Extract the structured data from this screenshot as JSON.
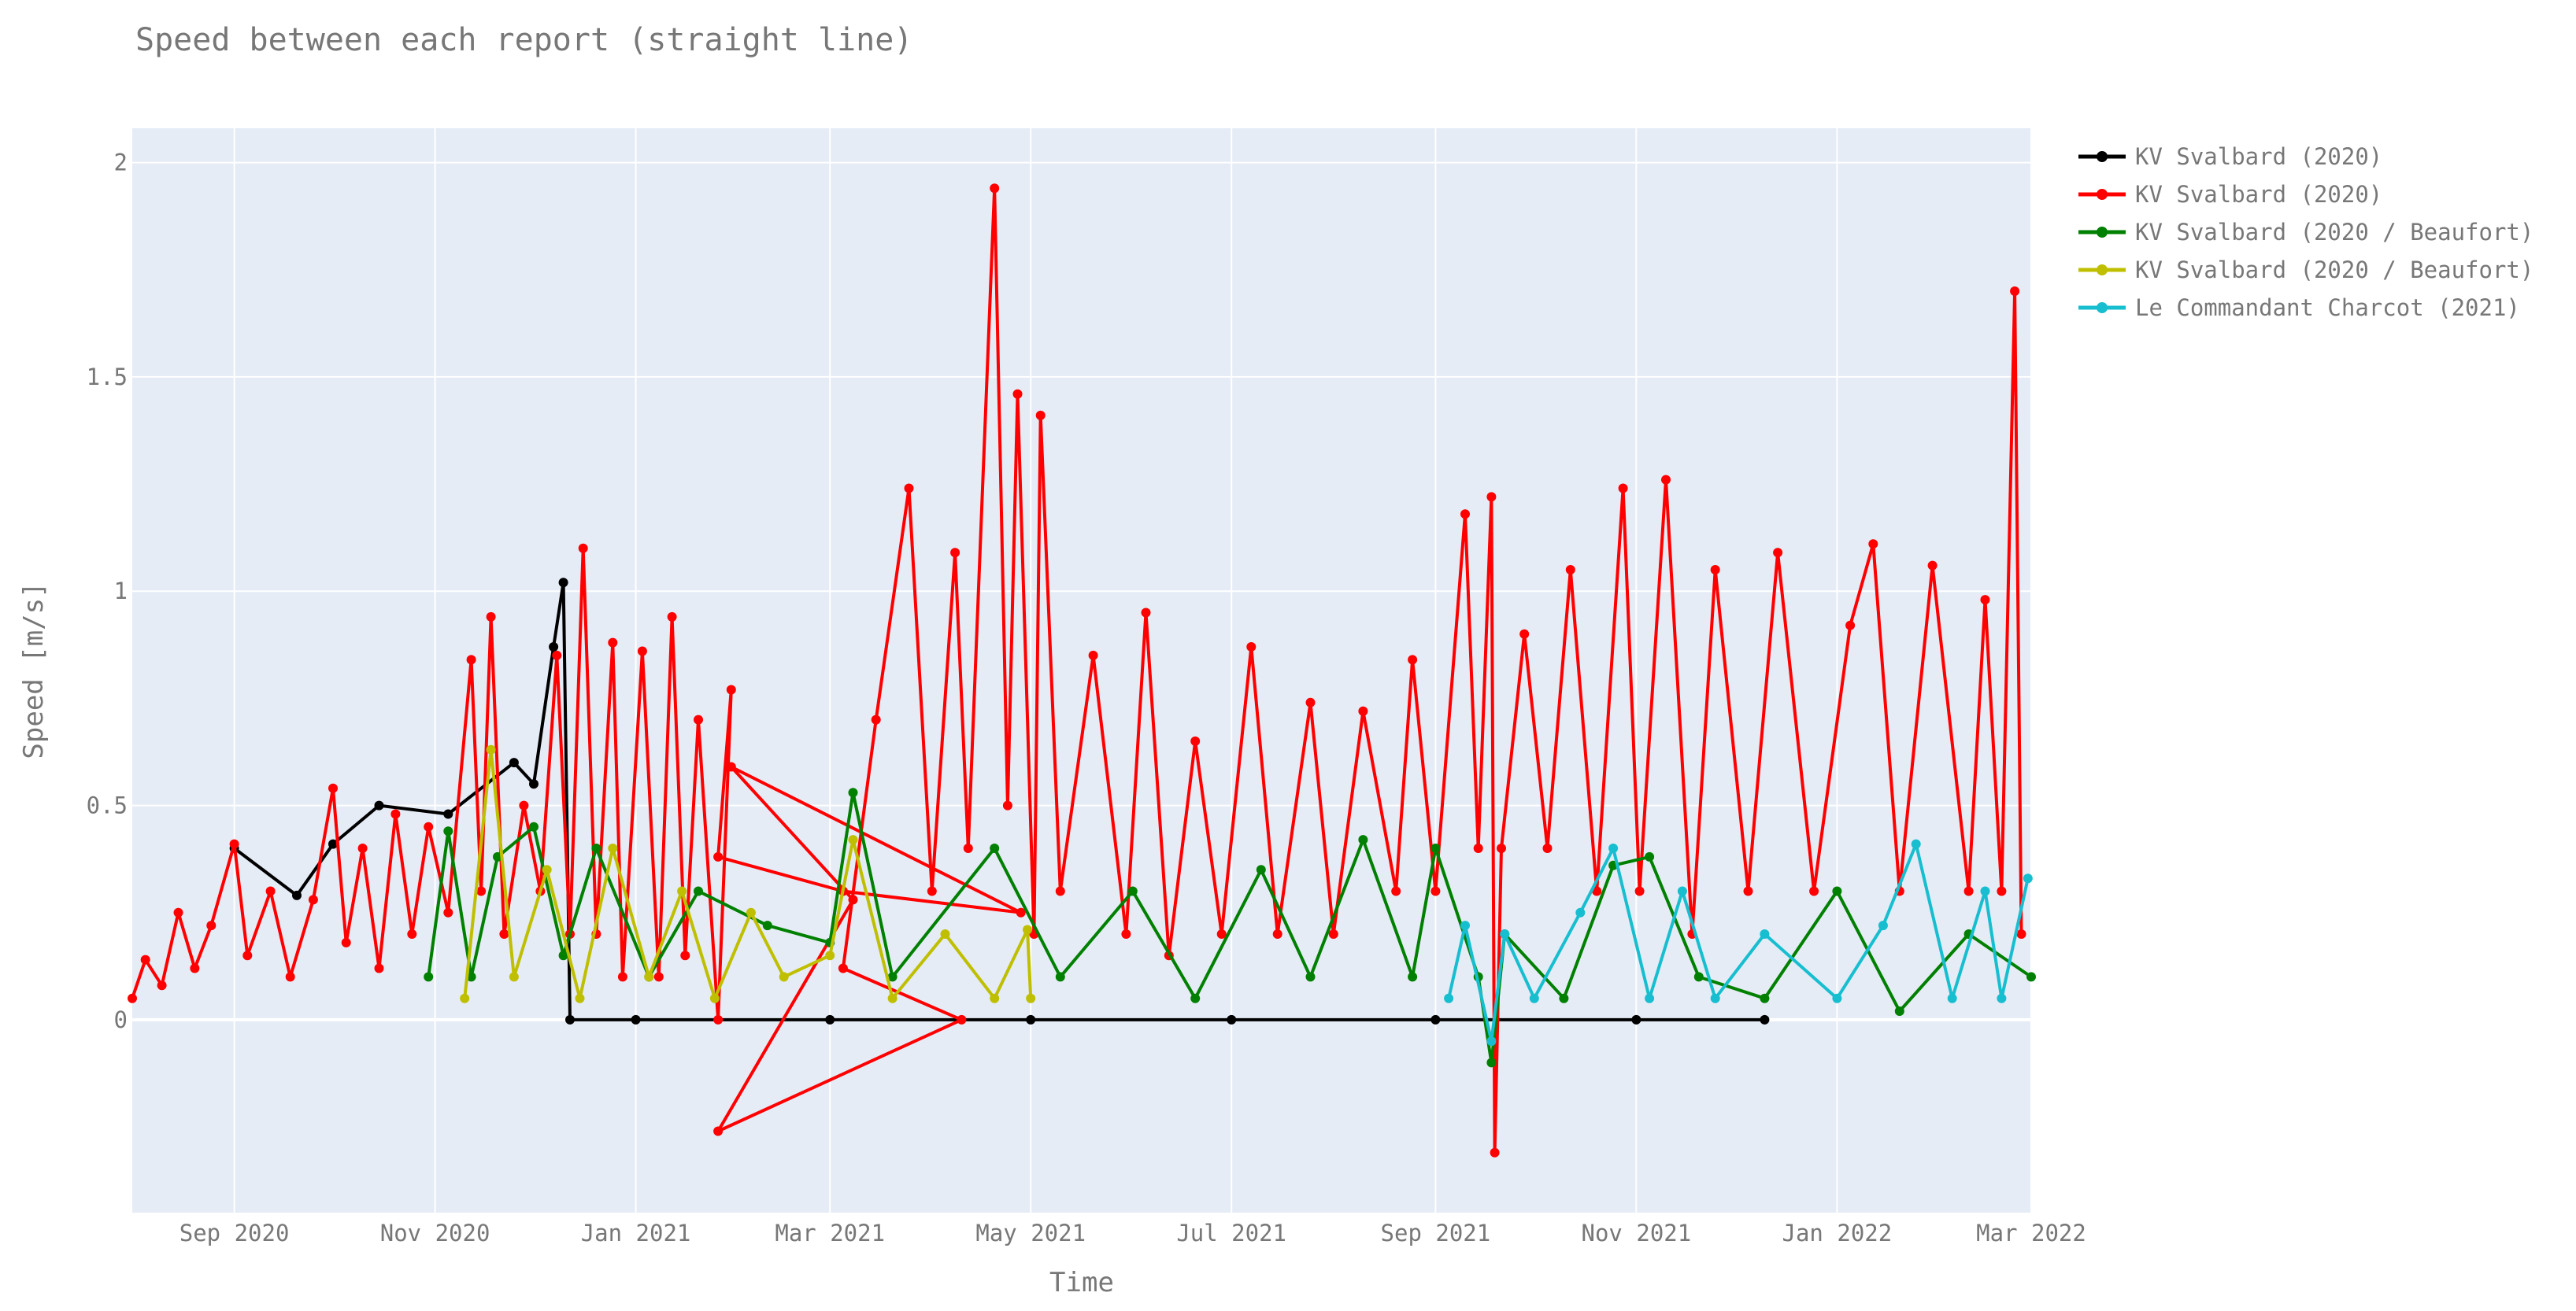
{
  "chart_data": {
    "type": "line",
    "title": "Speed between each report (straight line)",
    "xlabel": "Time",
    "ylabel": "Speed [m/s]",
    "x_range": [
      "2020-08-01",
      "2022-03-01"
    ],
    "ylim": [
      -0.45,
      2.08
    ],
    "grid": true,
    "legend_placement": "top-right outside",
    "plot_background": "#E5ECF6",
    "x_ticks": [
      {
        "date": "2020-09-01",
        "label": "Sep 2020"
      },
      {
        "date": "2020-11-01",
        "label": "Nov 2020"
      },
      {
        "date": "2021-01-01",
        "label": "Jan 2021"
      },
      {
        "date": "2021-03-01",
        "label": "Mar 2021"
      },
      {
        "date": "2021-05-01",
        "label": "May 2021"
      },
      {
        "date": "2021-07-01",
        "label": "Jul 2021"
      },
      {
        "date": "2021-09-01",
        "label": "Sep 2021"
      },
      {
        "date": "2021-11-01",
        "label": "Nov 2021"
      },
      {
        "date": "2022-01-01",
        "label": "Jan 2022"
      },
      {
        "date": "2022-03-01",
        "label": "Mar 2022"
      }
    ],
    "y_ticks": [
      {
        "value": 0,
        "label": "0"
      },
      {
        "value": 0.5,
        "label": "0.5"
      },
      {
        "value": 1,
        "label": "1"
      },
      {
        "value": 1.5,
        "label": "1.5"
      },
      {
        "value": 2,
        "label": "2"
      }
    ],
    "series": [
      {
        "name": "KV Svalbard (2020)",
        "color": "#000000",
        "points": [
          [
            "2020-09-01",
            0.4
          ],
          [
            "2020-09-20",
            0.29
          ],
          [
            "2020-10-01",
            0.41
          ],
          [
            "2020-10-15",
            0.5
          ],
          [
            "2020-11-05",
            0.48
          ],
          [
            "2020-11-25",
            0.6
          ],
          [
            "2020-12-01",
            0.55
          ],
          [
            "2020-12-07",
            0.87
          ],
          [
            "2020-12-10",
            1.02
          ],
          [
            "2020-12-12",
            0.0
          ],
          [
            "2021-01-01",
            0.0
          ],
          [
            "2021-03-01",
            0.0
          ],
          [
            "2021-05-01",
            0.0
          ],
          [
            "2021-07-01",
            0.0
          ],
          [
            "2021-09-01",
            0.0
          ],
          [
            "2021-11-01",
            0.0
          ],
          [
            "2021-12-10",
            0.0
          ]
        ]
      },
      {
        "name": "KV Svalbard (2020)",
        "color": "#FF0000",
        "points": [
          [
            "2020-08-01",
            0.05
          ],
          [
            "2020-08-05",
            0.14
          ],
          [
            "2020-08-10",
            0.08
          ],
          [
            "2020-08-15",
            0.25
          ],
          [
            "2020-08-20",
            0.12
          ],
          [
            "2020-08-25",
            0.22
          ],
          [
            "2020-09-01",
            0.41
          ],
          [
            "2020-09-05",
            0.15
          ],
          [
            "2020-09-12",
            0.3
          ],
          [
            "2020-09-18",
            0.1
          ],
          [
            "2020-09-25",
            0.28
          ],
          [
            "2020-10-01",
            0.54
          ],
          [
            "2020-10-05",
            0.18
          ],
          [
            "2020-10-10",
            0.4
          ],
          [
            "2020-10-15",
            0.12
          ],
          [
            "2020-10-20",
            0.48
          ],
          [
            "2020-10-25",
            0.2
          ],
          [
            "2020-10-30",
            0.45
          ],
          [
            "2020-11-05",
            0.25
          ],
          [
            "2020-11-12",
            0.84
          ],
          [
            "2020-11-15",
            0.3
          ],
          [
            "2020-11-18",
            0.94
          ],
          [
            "2020-11-22",
            0.2
          ],
          [
            "2020-11-28",
            0.5
          ],
          [
            "2020-12-03",
            0.3
          ],
          [
            "2020-12-08",
            0.85
          ],
          [
            "2020-12-12",
            0.2
          ],
          [
            "2020-12-16",
            1.1
          ],
          [
            "2020-12-20",
            0.2
          ],
          [
            "2020-12-25",
            0.88
          ],
          [
            "2020-12-28",
            0.1
          ],
          [
            "2021-01-03",
            0.86
          ],
          [
            "2021-01-08",
            0.1
          ],
          [
            "2021-01-12",
            0.94
          ],
          [
            "2021-01-16",
            0.15
          ],
          [
            "2021-01-20",
            0.7
          ],
          [
            "2021-01-26",
            0.0
          ],
          [
            "2021-01-30",
            0.77
          ],
          [
            "2021-01-26",
            0.38
          ],
          [
            "2021-03-05",
            0.3
          ],
          [
            "2021-04-28",
            0.25
          ],
          [
            "2021-01-30",
            0.59
          ],
          [
            "2021-03-08",
            0.28
          ],
          [
            "2021-01-26",
            -0.26
          ],
          [
            "2021-04-10",
            0.0
          ],
          [
            "2021-03-05",
            0.12
          ],
          [
            "2021-03-15",
            0.7
          ],
          [
            "2021-03-25",
            1.24
          ],
          [
            "2021-04-01",
            0.3
          ],
          [
            "2021-04-08",
            1.09
          ],
          [
            "2021-04-12",
            0.4
          ],
          [
            "2021-04-20",
            1.94
          ],
          [
            "2021-04-24",
            0.5
          ],
          [
            "2021-04-27",
            1.46
          ],
          [
            "2021-05-02",
            0.2
          ],
          [
            "2021-05-04",
            1.41
          ],
          [
            "2021-05-10",
            0.3
          ],
          [
            "2021-05-20",
            0.85
          ],
          [
            "2021-05-30",
            0.2
          ],
          [
            "2021-06-05",
            0.95
          ],
          [
            "2021-06-12",
            0.15
          ],
          [
            "2021-06-20",
            0.65
          ],
          [
            "2021-06-28",
            0.2
          ],
          [
            "2021-07-07",
            0.87
          ],
          [
            "2021-07-15",
            0.2
          ],
          [
            "2021-07-25",
            0.74
          ],
          [
            "2021-08-01",
            0.2
          ],
          [
            "2021-08-10",
            0.72
          ],
          [
            "2021-08-20",
            0.3
          ],
          [
            "2021-08-25",
            0.84
          ],
          [
            "2021-09-01",
            0.3
          ],
          [
            "2021-09-10",
            1.18
          ],
          [
            "2021-09-14",
            0.4
          ],
          [
            "2021-09-18",
            1.22
          ],
          [
            "2021-09-19",
            -0.31
          ],
          [
            "2021-09-21",
            0.4
          ],
          [
            "2021-09-28",
            0.9
          ],
          [
            "2021-10-05",
            0.4
          ],
          [
            "2021-10-12",
            1.05
          ],
          [
            "2021-10-20",
            0.3
          ],
          [
            "2021-10-28",
            1.24
          ],
          [
            "2021-11-02",
            0.3
          ],
          [
            "2021-11-10",
            1.26
          ],
          [
            "2021-11-18",
            0.2
          ],
          [
            "2021-11-25",
            1.05
          ],
          [
            "2021-12-05",
            0.3
          ],
          [
            "2021-12-14",
            1.09
          ],
          [
            "2021-12-25",
            0.3
          ],
          [
            "2022-01-05",
            0.92
          ],
          [
            "2022-01-12",
            1.11
          ],
          [
            "2022-01-20",
            0.3
          ],
          [
            "2022-01-30",
            1.06
          ],
          [
            "2022-02-10",
            0.3
          ],
          [
            "2022-02-15",
            0.98
          ],
          [
            "2022-02-20",
            0.3
          ],
          [
            "2022-02-24",
            1.7
          ],
          [
            "2022-02-26",
            0.2
          ]
        ]
      },
      {
        "name": "KV Svalbard (2020 / Beaufort)",
        "color": "#008000",
        "points": [
          [
            "2020-10-30",
            0.1
          ],
          [
            "2020-11-05",
            0.44
          ],
          [
            "2020-11-12",
            0.1
          ],
          [
            "2020-11-20",
            0.38
          ],
          [
            "2020-12-01",
            0.45
          ],
          [
            "2020-12-10",
            0.15
          ],
          [
            "2020-12-20",
            0.4
          ],
          [
            "2021-01-05",
            0.1
          ],
          [
            "2021-01-20",
            0.3
          ],
          [
            "2021-02-10",
            0.22
          ],
          [
            "2021-03-01",
            0.18
          ],
          [
            "2021-03-08",
            0.53
          ],
          [
            "2021-03-20",
            0.1
          ],
          [
            "2021-04-20",
            0.4
          ],
          [
            "2021-05-10",
            0.1
          ],
          [
            "2021-06-01",
            0.3
          ],
          [
            "2021-06-20",
            0.05
          ],
          [
            "2021-07-10",
            0.35
          ],
          [
            "2021-07-25",
            0.1
          ],
          [
            "2021-08-10",
            0.42
          ],
          [
            "2021-08-25",
            0.1
          ],
          [
            "2021-09-01",
            0.4
          ],
          [
            "2021-09-14",
            0.1
          ],
          [
            "2021-09-18",
            -0.1
          ],
          [
            "2021-09-22",
            0.2
          ],
          [
            "2021-10-10",
            0.05
          ],
          [
            "2021-10-25",
            0.36
          ],
          [
            "2021-11-05",
            0.38
          ],
          [
            "2021-11-20",
            0.1
          ],
          [
            "2021-12-10",
            0.05
          ],
          [
            "2022-01-01",
            0.3
          ],
          [
            "2022-01-20",
            0.02
          ],
          [
            "2022-02-10",
            0.2
          ],
          [
            "2022-03-01",
            0.1
          ]
        ]
      },
      {
        "name": "KV Svalbard (2020 / Beaufort)",
        "color": "#BFBF00",
        "points": [
          [
            "2020-11-10",
            0.05
          ],
          [
            "2020-11-18",
            0.63
          ],
          [
            "2020-11-25",
            0.1
          ],
          [
            "2020-12-05",
            0.35
          ],
          [
            "2020-12-15",
            0.05
          ],
          [
            "2020-12-25",
            0.4
          ],
          [
            "2021-01-05",
            0.1
          ],
          [
            "2021-01-15",
            0.3
          ],
          [
            "2021-01-25",
            0.05
          ],
          [
            "2021-02-05",
            0.25
          ],
          [
            "2021-02-15",
            0.1
          ],
          [
            "2021-03-01",
            0.15
          ],
          [
            "2021-03-08",
            0.42
          ],
          [
            "2021-03-20",
            0.05
          ],
          [
            "2021-04-05",
            0.2
          ],
          [
            "2021-04-20",
            0.05
          ],
          [
            "2021-04-30",
            0.21
          ],
          [
            "2021-05-01",
            0.05
          ]
        ]
      },
      {
        "name": "Le Commandant Charcot (2021)",
        "color": "#17BECF",
        "points": [
          [
            "2021-09-05",
            0.05
          ],
          [
            "2021-09-10",
            0.22
          ],
          [
            "2021-09-18",
            -0.05
          ],
          [
            "2021-09-22",
            0.2
          ],
          [
            "2021-10-01",
            0.05
          ],
          [
            "2021-10-15",
            0.25
          ],
          [
            "2021-10-25",
            0.4
          ],
          [
            "2021-11-05",
            0.05
          ],
          [
            "2021-11-15",
            0.3
          ],
          [
            "2021-11-25",
            0.05
          ],
          [
            "2021-12-10",
            0.2
          ],
          [
            "2022-01-01",
            0.05
          ],
          [
            "2022-01-15",
            0.22
          ],
          [
            "2022-01-25",
            0.41
          ],
          [
            "2022-02-05",
            0.05
          ],
          [
            "2022-02-15",
            0.3
          ],
          [
            "2022-02-20",
            0.05
          ],
          [
            "2022-02-28",
            0.33
          ]
        ]
      }
    ]
  }
}
